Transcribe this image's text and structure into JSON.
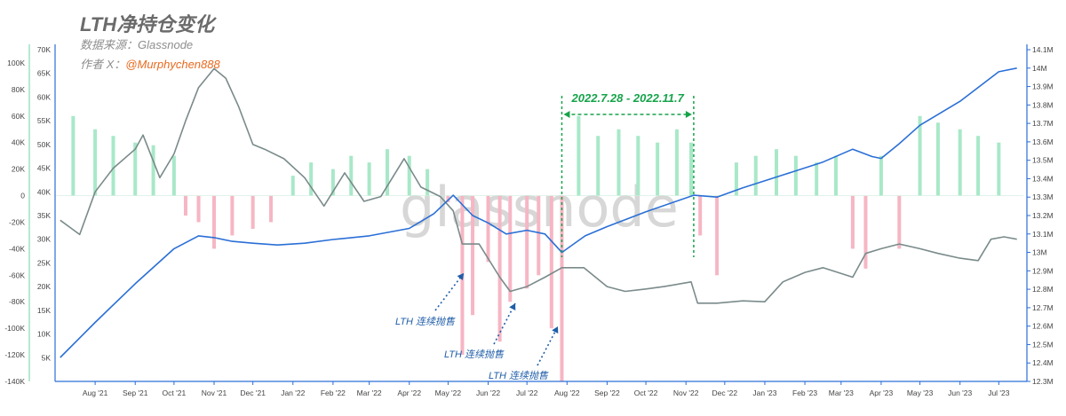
{
  "header": {
    "title": "LTH净持仓变化",
    "source": "数据来源：Glassnode",
    "author_prefix": "作者 X：",
    "author_handle": "@Murphychen888",
    "watermark": "glassnode"
  },
  "annotations": {
    "range_label": "2022.7.28 - 2022.11.7",
    "selling_label": "LTH 连续抛售"
  },
  "colors": {
    "positive_bars": "#a8e8c8",
    "negative_bars": "#f6b6c4",
    "price_line": "#7a8a8a",
    "lth_supply_line": "#2a6fd6",
    "range_marker": "#17a34a",
    "annotation": "#1f5da8"
  },
  "chart_data": {
    "type": "bar+line",
    "x_ticks": [
      "Aug '21",
      "Sep '21",
      "Oct '21",
      "Nov '21",
      "Dec '21",
      "Jan '22",
      "Feb '22",
      "Mar '22",
      "Apr '22",
      "May '22",
      "Jun '22",
      "Jul '22",
      "Aug '22",
      "Sep '22",
      "Oct '22",
      "Nov '22",
      "Dec '22",
      "Jan '23",
      "Feb '23",
      "Mar '23",
      "Apr '23",
      "May '23",
      "Jun '23",
      "Jul '23"
    ],
    "left_axis_netflow": {
      "label": "",
      "ticks": [
        "100K",
        "80K",
        "60K",
        "40K",
        "20K",
        "0",
        "-20K",
        "-40K",
        "-60K",
        "-80K",
        "-100K",
        "-120K",
        "-140K"
      ],
      "range": [
        -140000,
        110000
      ]
    },
    "price_axis": {
      "label": "",
      "ticks": [
        "70K",
        "65K",
        "60K",
        "55K",
        "50K",
        "45K",
        "40K",
        "35K",
        "30K",
        "25K",
        "20K",
        "15K",
        "10K",
        "5K"
      ],
      "range": [
        0,
        70000
      ]
    },
    "right_axis_supply": {
      "label": "",
      "ticks": [
        "14.1M",
        "14M",
        "13.9M",
        "13.8M",
        "13.7M",
        "13.6M",
        "13.5M",
        "13.4M",
        "13.3M",
        "13.2M",
        "13.1M",
        "13M",
        "12.9M",
        "12.8M",
        "12.7M",
        "12.6M",
        "12.5M",
        "12.4M",
        "12.3M"
      ],
      "range": [
        12300000,
        14100000
      ]
    },
    "series": [
      {
        "name": "",
        "kind": "bar",
        "x": [
          "2021-07-15",
          "2021-08-01",
          "2021-08-15",
          "2021-09-01",
          "2021-09-15",
          "2021-10-01",
          "2021-10-10",
          "2021-10-20",
          "2021-11-01",
          "2021-11-15",
          "2021-12-01",
          "2021-12-15",
          "2022-01-01",
          "2022-01-15",
          "2022-02-01",
          "2022-02-15",
          "2022-03-01",
          "2022-03-15",
          "2022-04-01",
          "2022-04-15",
          "2022-05-01",
          "2022-05-12",
          "2022-05-20",
          "2022-06-01",
          "2022-06-10",
          "2022-06-18",
          "2022-07-01",
          "2022-07-10",
          "2022-07-20",
          "2022-07-28",
          "2022-08-10",
          "2022-08-25",
          "2022-09-10",
          "2022-09-25",
          "2022-10-10",
          "2022-10-25",
          "2022-11-05",
          "2022-11-12",
          "2022-11-25",
          "2022-12-10",
          "2022-12-25",
          "2023-01-10",
          "2023-01-25",
          "2023-02-10",
          "2023-02-25",
          "2023-03-10",
          "2023-03-20",
          "2023-04-01",
          "2023-04-15",
          "2023-05-01",
          "2023-05-15",
          "2023-06-01",
          "2023-06-15",
          "2023-07-01"
        ],
        "values": [
          60000,
          50000,
          45000,
          40000,
          38000,
          30000,
          -15000,
          -20000,
          -40000,
          -30000,
          -25000,
          -20000,
          15000,
          25000,
          20000,
          30000,
          25000,
          35000,
          30000,
          20000,
          -5000,
          -120000,
          -90000,
          -50000,
          -110000,
          -80000,
          -70000,
          -60000,
          -100000,
          -140000,
          60000,
          45000,
          50000,
          45000,
          40000,
          50000,
          40000,
          -30000,
          -60000,
          25000,
          30000,
          35000,
          30000,
          25000,
          30000,
          -40000,
          -55000,
          30000,
          -40000,
          60000,
          55000,
          50000,
          45000,
          40000
        ]
      },
      {
        "name": "",
        "kind": "line",
        "x": [
          "2021-07-05",
          "2021-07-20",
          "2021-08-01",
          "2021-08-15",
          "2021-09-01",
          "2021-09-07",
          "2021-09-20",
          "2021-10-01",
          "2021-10-10",
          "2021-10-20",
          "2021-11-01",
          "2021-11-10",
          "2021-11-20",
          "2021-12-01",
          "2021-12-10",
          "2021-12-25",
          "2022-01-10",
          "2022-01-25",
          "2022-02-10",
          "2022-02-25",
          "2022-03-10",
          "2022-03-28",
          "2022-04-10",
          "2022-04-25",
          "2022-05-05",
          "2022-05-12",
          "2022-05-25",
          "2022-06-10",
          "2022-06-18",
          "2022-07-01",
          "2022-07-15",
          "2022-07-28",
          "2022-08-14",
          "2022-09-01",
          "2022-09-15",
          "2022-10-01",
          "2022-10-15",
          "2022-11-05",
          "2022-11-10",
          "2022-11-25",
          "2022-12-15",
          "2023-01-01",
          "2023-01-15",
          "2023-02-01",
          "2023-02-15",
          "2023-03-10",
          "2023-03-20",
          "2023-04-01",
          "2023-04-15",
          "2023-05-01",
          "2023-05-15",
          "2023-06-01",
          "2023-06-15",
          "2023-06-25",
          "2023-07-05",
          "2023-07-15"
        ],
        "values": [
          34000,
          31000,
          40000,
          45000,
          49000,
          52000,
          43000,
          48000,
          55000,
          62000,
          66000,
          64000,
          58000,
          50000,
          49000,
          47000,
          43000,
          37000,
          44000,
          38000,
          39000,
          47000,
          41000,
          39000,
          36000,
          29000,
          29000,
          22000,
          19000,
          20000,
          22000,
          24000,
          24000,
          20000,
          19000,
          19500,
          20000,
          21000,
          16500,
          16500,
          17000,
          16800,
          21000,
          23000,
          24000,
          22000,
          27000,
          28000,
          29000,
          28000,
          27000,
          26000,
          25500,
          30000,
          30500,
          30000
        ]
      },
      {
        "name": "",
        "kind": "line",
        "x": [
          "2021-07-05",
          "2021-08-01",
          "2021-09-01",
          "2021-10-01",
          "2021-10-20",
          "2021-11-01",
          "2021-11-15",
          "2021-12-01",
          "2021-12-20",
          "2022-01-10",
          "2022-02-01",
          "2022-03-01",
          "2022-04-01",
          "2022-04-20",
          "2022-05-05",
          "2022-05-20",
          "2022-06-01",
          "2022-06-15",
          "2022-07-01",
          "2022-07-15",
          "2022-07-28",
          "2022-08-15",
          "2022-09-01",
          "2022-10-01",
          "2022-11-07",
          "2022-11-25",
          "2022-12-15",
          "2023-01-15",
          "2023-02-15",
          "2023-03-10",
          "2023-03-25",
          "2023-04-01",
          "2023-04-15",
          "2023-05-01",
          "2023-06-01",
          "2023-07-01",
          "2023-07-15"
        ],
        "values": [
          12430000,
          12620000,
          12830000,
          13020000,
          13090000,
          13080000,
          13060000,
          13050000,
          13040000,
          13050000,
          13070000,
          13090000,
          13130000,
          13210000,
          13310000,
          13200000,
          13160000,
          13100000,
          13120000,
          13100000,
          13000000,
          13090000,
          13140000,
          13220000,
          13310000,
          13300000,
          13350000,
          13420000,
          13490000,
          13560000,
          13520000,
          13510000,
          13590000,
          13690000,
          13820000,
          13980000,
          14000000
        ]
      }
    ],
    "highlight_range": [
      "2022-07-28",
      "2022-11-07"
    ],
    "grid": false,
    "legend": "none"
  }
}
